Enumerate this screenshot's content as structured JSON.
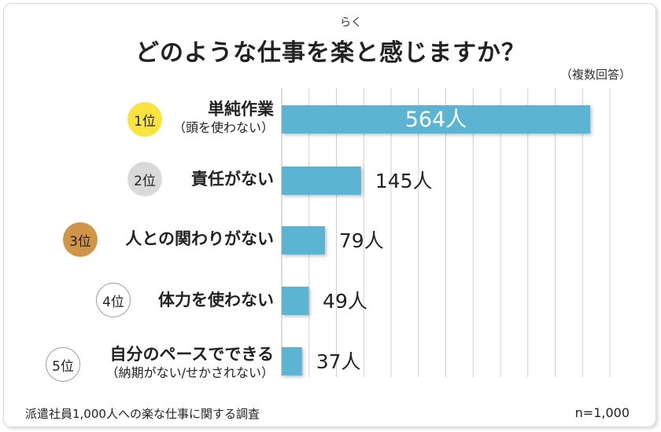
{
  "title": "どのような仕事を楽と感じますか？",
  "title_ruby": "らく",
  "note": "（複数回答）",
  "source": "派遣社員1,000人への楽な仕事に関する調査",
  "sample": "n=1,000",
  "colors": {
    "bar": "#5bb4d1",
    "grid": "#d0d0d0",
    "gold": "#f9e33f",
    "silver": "#d9d9d9",
    "bronze": "#d09549"
  },
  "ranks": [
    {
      "badge": "1位",
      "line1": "単純作業",
      "line2": "（頭を使わない）"
    },
    {
      "badge": "2位",
      "line1": "責任がない",
      "line2": ""
    },
    {
      "badge": "3位",
      "line1": "人との関わりがない",
      "line2": ""
    },
    {
      "badge": "4位",
      "line1": "体力を使わない",
      "line2": ""
    },
    {
      "badge": "5位",
      "line1": "自分のペースでできる",
      "line2": "（納期がない/せかされない）"
    }
  ],
  "chart_data": {
    "type": "bar",
    "orientation": "horizontal",
    "categories": [
      "単純作業（頭を使わない）",
      "責任がない",
      "人との関わりがない",
      "体力を使わない",
      "自分のペースでできる（納期がない/せかされない）"
    ],
    "values": [
      564,
      145,
      79,
      49,
      37
    ],
    "value_labels": [
      "564人",
      "145人",
      "79人",
      "49人",
      "37人"
    ],
    "title": "どのような仕事を楽と感じますか？",
    "xlim": [
      0,
      600
    ],
    "grid": true
  }
}
